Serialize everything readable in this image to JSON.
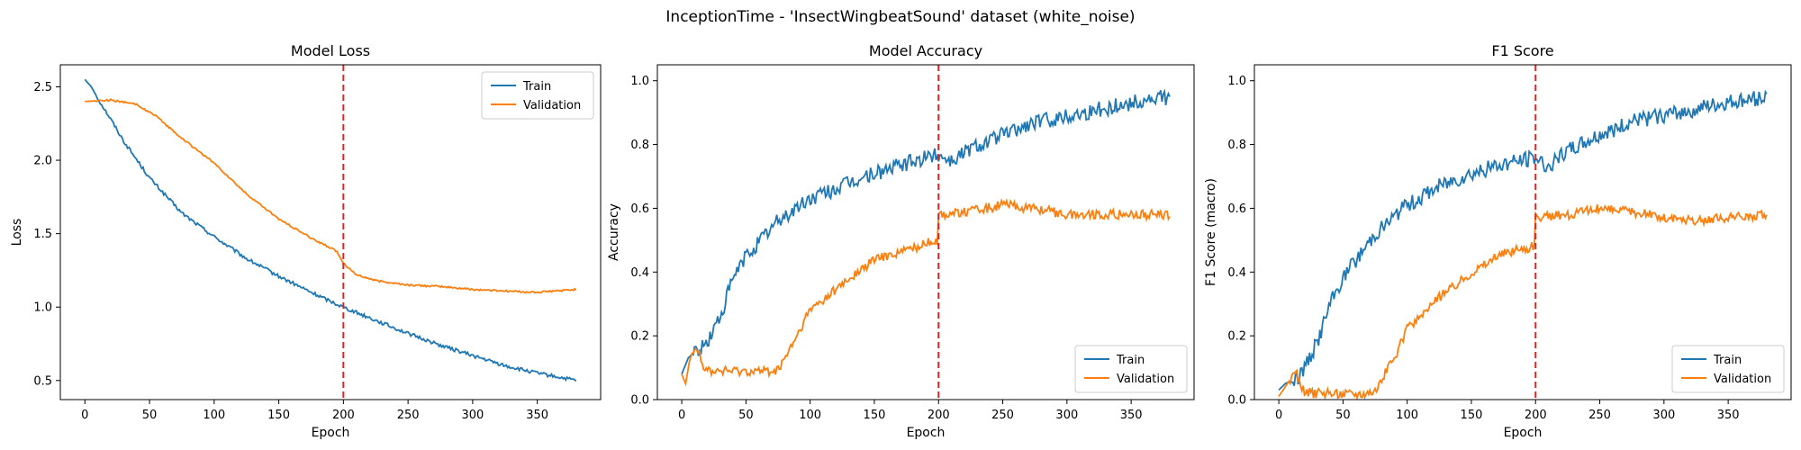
{
  "figure": {
    "suptitle": "InceptionTime - 'InsectWingbeatSound' dataset (white_noise)"
  },
  "colors": {
    "train": "#1f77b4",
    "validation": "#ff7f0e",
    "marker": "#d62728"
  },
  "chart_data": [
    {
      "type": "line",
      "title": "Model Loss",
      "xlabel": "Epoch",
      "ylabel": "Loss",
      "xlim": [
        -19,
        399
      ],
      "ylim": [
        0.37,
        2.65
      ],
      "xticks": [
        0,
        50,
        100,
        150,
        200,
        250,
        300,
        350
      ],
      "yticks": [
        0.5,
        1.0,
        1.5,
        2.0,
        2.5
      ],
      "ytick_labels": [
        "0.5",
        "1.0",
        "1.5",
        "2.0",
        "2.5"
      ],
      "vline": 200,
      "legend_loc": "upper right",
      "series": [
        {
          "name": "Train",
          "x": [
            0,
            5,
            10,
            20,
            30,
            50,
            75,
            100,
            125,
            150,
            175,
            200,
            225,
            250,
            275,
            300,
            325,
            350,
            380
          ],
          "y": [
            2.55,
            2.5,
            2.42,
            2.28,
            2.13,
            1.88,
            1.64,
            1.48,
            1.33,
            1.21,
            1.1,
            1.0,
            0.91,
            0.82,
            0.74,
            0.67,
            0.6,
            0.55,
            0.5
          ]
        },
        {
          "name": "Validation",
          "x": [
            0,
            20,
            40,
            55,
            75,
            100,
            125,
            150,
            175,
            195,
            200,
            210,
            225,
            250,
            275,
            300,
            325,
            350,
            380
          ],
          "y": [
            2.4,
            2.41,
            2.38,
            2.3,
            2.15,
            1.98,
            1.77,
            1.6,
            1.47,
            1.38,
            1.3,
            1.22,
            1.18,
            1.15,
            1.14,
            1.12,
            1.11,
            1.1,
            1.12
          ]
        }
      ]
    },
    {
      "type": "line",
      "title": "Model Accuracy",
      "xlabel": "Epoch",
      "ylabel": "Accuracy",
      "xlim": [
        -19,
        399
      ],
      "ylim": [
        0.0,
        1.05
      ],
      "xticks": [
        0,
        50,
        100,
        150,
        200,
        250,
        300,
        350
      ],
      "yticks": [
        0.0,
        0.2,
        0.4,
        0.6,
        0.8,
        1.0
      ],
      "ytick_labels": [
        "0.0",
        "0.2",
        "0.4",
        "0.6",
        "0.8",
        "1.0"
      ],
      "vline": 200,
      "legend_loc": "lower right",
      "series": [
        {
          "name": "Train",
          "x": [
            0,
            5,
            10,
            15,
            20,
            30,
            40,
            50,
            75,
            100,
            125,
            150,
            175,
            200,
            210,
            225,
            250,
            275,
            300,
            325,
            350,
            380
          ],
          "y": [
            0.08,
            0.13,
            0.15,
            0.16,
            0.18,
            0.26,
            0.38,
            0.45,
            0.56,
            0.63,
            0.67,
            0.71,
            0.74,
            0.77,
            0.75,
            0.79,
            0.83,
            0.87,
            0.89,
            0.91,
            0.93,
            0.95
          ]
        },
        {
          "name": "Validation",
          "x": [
            0,
            3,
            6,
            10,
            14,
            16,
            20,
            40,
            60,
            75,
            90,
            100,
            125,
            150,
            175,
            199,
            200,
            225,
            250,
            275,
            300,
            325,
            350,
            380
          ],
          "y": [
            0.08,
            0.05,
            0.12,
            0.17,
            0.15,
            0.11,
            0.09,
            0.09,
            0.09,
            0.09,
            0.2,
            0.28,
            0.36,
            0.44,
            0.47,
            0.5,
            0.58,
            0.59,
            0.61,
            0.6,
            0.58,
            0.58,
            0.58,
            0.58
          ]
        }
      ]
    },
    {
      "type": "line",
      "title": "F1 Score",
      "xlabel": "Epoch",
      "ylabel": "F1 Score (macro)",
      "xlim": [
        -19,
        399
      ],
      "ylim": [
        0.0,
        1.05
      ],
      "xticks": [
        0,
        50,
        100,
        150,
        200,
        250,
        300,
        350
      ],
      "yticks": [
        0.0,
        0.2,
        0.4,
        0.6,
        0.8,
        1.0
      ],
      "ytick_labels": [
        "0.0",
        "0.2",
        "0.4",
        "0.6",
        "0.8",
        "1.0"
      ],
      "vline": 200,
      "legend_loc": "lower right",
      "series": [
        {
          "name": "Train",
          "x": [
            0,
            5,
            10,
            15,
            20,
            30,
            40,
            50,
            75,
            100,
            125,
            150,
            175,
            200,
            210,
            225,
            250,
            275,
            300,
            325,
            350,
            380
          ],
          "y": [
            0.03,
            0.05,
            0.06,
            0.07,
            0.1,
            0.18,
            0.3,
            0.38,
            0.52,
            0.61,
            0.67,
            0.71,
            0.74,
            0.76,
            0.73,
            0.78,
            0.83,
            0.87,
            0.89,
            0.91,
            0.93,
            0.95
          ]
        },
        {
          "name": "Validation",
          "x": [
            0,
            5,
            10,
            14,
            18,
            25,
            50,
            65,
            75,
            90,
            100,
            125,
            150,
            175,
            199,
            200,
            225,
            250,
            275,
            300,
            325,
            350,
            380
          ],
          "y": [
            0.01,
            0.04,
            0.07,
            0.08,
            0.03,
            0.02,
            0.02,
            0.02,
            0.03,
            0.13,
            0.22,
            0.32,
            0.4,
            0.46,
            0.48,
            0.57,
            0.58,
            0.6,
            0.59,
            0.57,
            0.56,
            0.57,
            0.58
          ]
        }
      ]
    }
  ]
}
